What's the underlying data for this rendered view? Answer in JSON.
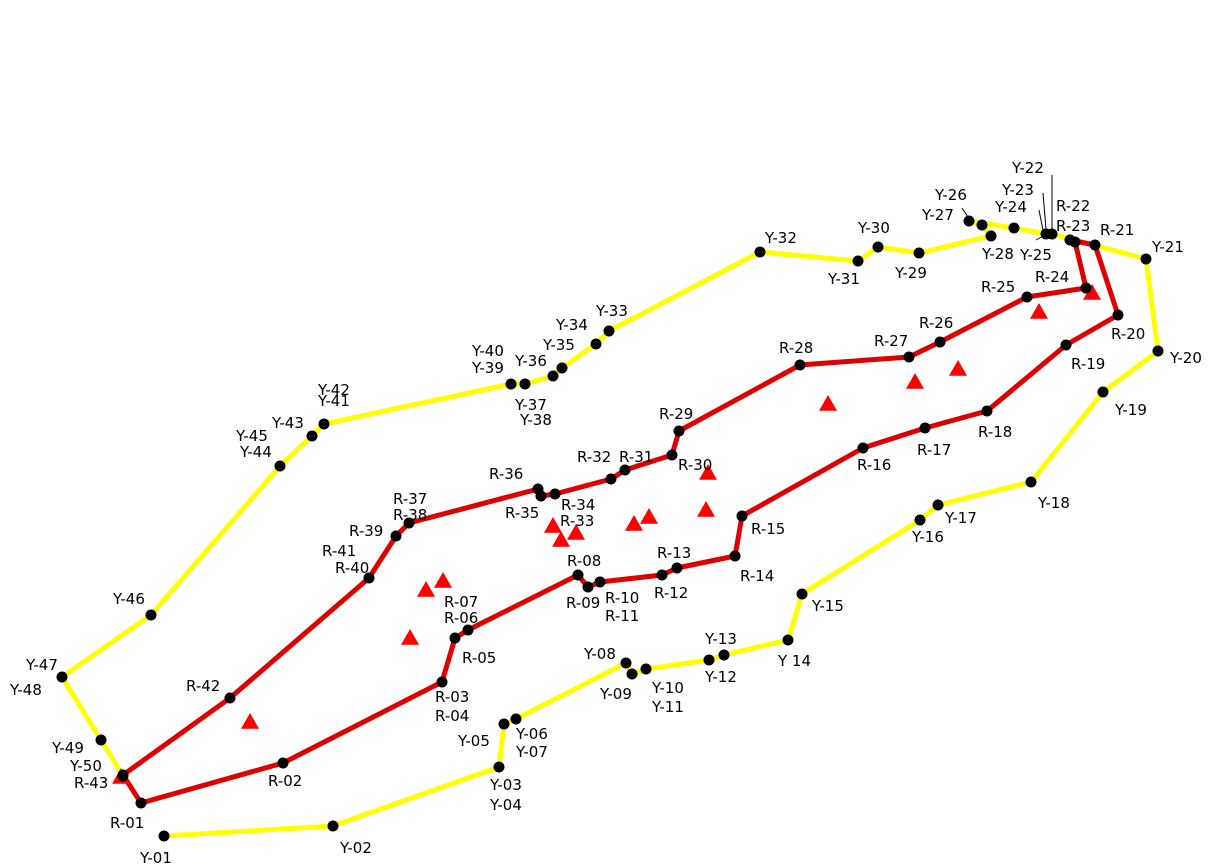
{
  "colors": {
    "yellow_route": "#ffff00",
    "red_route": "#dd0000",
    "point": "#000000",
    "triangle": "#ff0000",
    "background": "#ffffff"
  },
  "yellow_route": {
    "line_labels": [
      "Y-01",
      "Y-02",
      "Y-03",
      "Y-05",
      "Y-06",
      "Y-08",
      "Y-09",
      "Y-10",
      "Y-12",
      "Y-13",
      "Y 14",
      "Y-15",
      "Y-16",
      "Y-17",
      "Y-18",
      "Y-19",
      "Y-20",
      "Y-21",
      "Y-22",
      "Y-23",
      "Y-24",
      "Y-26",
      "Y-27",
      "Y-28",
      "Y-29",
      "Y-30",
      "Y-31",
      "Y-32",
      "Y-33",
      "Y-34",
      "Y-35",
      "Y-36",
      "Y-37",
      "Y-39",
      "Y-40",
      "Y-41",
      "Y-43",
      "Y-44",
      "Y-45",
      "Y-46",
      "Y-47",
      "Y-48",
      "Y-49",
      "Y-50"
    ]
  },
  "red_route": {
    "line_labels": [
      "R-01",
      "R-02",
      "R-03",
      "R-05",
      "R-06",
      "R-07",
      "R-08",
      "R-09",
      "R-10",
      "R-12",
      "R-13",
      "R-14",
      "R-15",
      "R-16",
      "R-17",
      "R-18",
      "R-19",
      "R-20",
      "R-21",
      "R-22",
      "R-23",
      "R-24",
      "R-25",
      "R-26",
      "R-27",
      "R-28",
      "R-29",
      "R-30",
      "R-31",
      "R-32",
      "R-33",
      "R-34",
      "R-35",
      "R-36",
      "R-37",
      "R-39",
      "R-40",
      "R-41",
      "R-42",
      "R-43"
    ]
  },
  "labels": [
    {
      "text": "Y-01"
    },
    {
      "text": "Y-02"
    },
    {
      "text": "Y-03"
    },
    {
      "text": "Y-04"
    },
    {
      "text": "Y-05"
    },
    {
      "text": "Y-06"
    },
    {
      "text": "Y-07"
    },
    {
      "text": "Y-08"
    },
    {
      "text": "Y-09"
    },
    {
      "text": "Y-10"
    },
    {
      "text": "Y-11"
    },
    {
      "text": "Y-12"
    },
    {
      "text": "Y-13"
    },
    {
      "text": "Y 14"
    },
    {
      "text": "Y-15"
    },
    {
      "text": "Y-16"
    },
    {
      "text": "Y-17"
    },
    {
      "text": "Y-18"
    },
    {
      "text": "Y-19"
    },
    {
      "text": "Y-20"
    },
    {
      "text": "Y-21"
    },
    {
      "text": "Y-22"
    },
    {
      "text": "Y-23"
    },
    {
      "text": "Y-24"
    },
    {
      "text": "Y-25"
    },
    {
      "text": "Y-26"
    },
    {
      "text": "Y-27"
    },
    {
      "text": "Y-28"
    },
    {
      "text": "Y-29"
    },
    {
      "text": "Y-30"
    },
    {
      "text": "Y-31"
    },
    {
      "text": "Y-32"
    },
    {
      "text": "Y-33"
    },
    {
      "text": "Y-34"
    },
    {
      "text": "Y-35"
    },
    {
      "text": "Y-36"
    },
    {
      "text": "Y-37"
    },
    {
      "text": "Y-38"
    },
    {
      "text": "Y-39"
    },
    {
      "text": "Y-40"
    },
    {
      "text": "Y-41"
    },
    {
      "text": "Y-42"
    },
    {
      "text": "Y-43"
    },
    {
      "text": "Y-44"
    },
    {
      "text": "Y-45"
    },
    {
      "text": "Y-46"
    },
    {
      "text": "Y-47"
    },
    {
      "text": "Y-48"
    },
    {
      "text": "Y-49"
    },
    {
      "text": "Y-50"
    },
    {
      "text": "R-01"
    },
    {
      "text": "R-02"
    },
    {
      "text": "R-03"
    },
    {
      "text": "R-04"
    },
    {
      "text": "R-05"
    },
    {
      "text": "R-06"
    },
    {
      "text": "R-07"
    },
    {
      "text": "R-08"
    },
    {
      "text": "R-09"
    },
    {
      "text": "R-10"
    },
    {
      "text": "R-11"
    },
    {
      "text": "R-12"
    },
    {
      "text": "R-13"
    },
    {
      "text": "R-14"
    },
    {
      "text": "R-15"
    },
    {
      "text": "R-16"
    },
    {
      "text": "R-17"
    },
    {
      "text": "R-18"
    },
    {
      "text": "R-19"
    },
    {
      "text": "R-20"
    },
    {
      "text": "R-21"
    },
    {
      "text": "R-22"
    },
    {
      "text": "R-23"
    },
    {
      "text": "R-24"
    },
    {
      "text": "R-25"
    },
    {
      "text": "R-26"
    },
    {
      "text": "R-27"
    },
    {
      "text": "R-28"
    },
    {
      "text": "R-29"
    },
    {
      "text": "R-30"
    },
    {
      "text": "R-31"
    },
    {
      "text": "R-32"
    },
    {
      "text": "R-33"
    },
    {
      "text": "R-34"
    },
    {
      "text": "R-35"
    },
    {
      "text": "R-36"
    },
    {
      "text": "R-37"
    },
    {
      "text": "R-38"
    },
    {
      "text": "R-39"
    },
    {
      "text": "R-40"
    },
    {
      "text": "R-41"
    },
    {
      "text": "R-42"
    },
    {
      "text": "R-43"
    }
  ]
}
